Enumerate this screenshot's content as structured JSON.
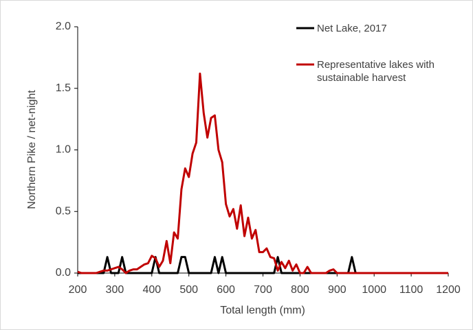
{
  "chart_data": {
    "type": "line",
    "xlabel": "Total length (mm)",
    "ylabel": "Northern Pike / net-night",
    "x": [
      200,
      210,
      220,
      230,
      240,
      250,
      260,
      270,
      280,
      290,
      300,
      310,
      320,
      330,
      340,
      350,
      360,
      370,
      380,
      390,
      400,
      410,
      420,
      430,
      440,
      450,
      460,
      470,
      480,
      490,
      500,
      510,
      520,
      530,
      540,
      550,
      560,
      570,
      580,
      590,
      600,
      610,
      620,
      630,
      640,
      650,
      660,
      670,
      680,
      690,
      700,
      710,
      720,
      730,
      740,
      750,
      760,
      770,
      780,
      790,
      800,
      810,
      820,
      830,
      840,
      850,
      860,
      870,
      880,
      890,
      900,
      910,
      920,
      930,
      940,
      950,
      960,
      970,
      980,
      990,
      1000,
      1010,
      1020,
      1030,
      1040,
      1050,
      1060,
      1070,
      1080,
      1090,
      1100,
      1110,
      1120,
      1130,
      1140,
      1150,
      1160,
      1170,
      1180,
      1190,
      1200
    ],
    "series": [
      {
        "name": "Net Lake, 2017",
        "color": "#000000",
        "values": [
          0,
          0,
          0,
          0,
          0,
          0,
          0,
          0,
          0.13,
          0,
          0,
          0,
          0.13,
          0,
          0,
          0,
          0,
          0,
          0,
          0,
          0,
          0.13,
          0,
          0,
          0,
          0,
          0,
          0,
          0.13,
          0.13,
          0,
          0,
          0,
          0,
          0,
          0,
          0,
          0.13,
          0,
          0.13,
          0,
          0,
          0,
          0,
          0,
          0,
          0,
          0,
          0,
          0,
          0,
          0,
          0,
          0,
          0.13,
          0,
          0,
          0,
          0,
          0,
          0,
          0,
          0,
          0,
          0,
          0,
          0,
          0,
          0,
          0,
          0,
          0,
          0,
          0,
          0.13,
          0,
          0,
          0,
          0,
          0,
          0,
          0,
          0,
          0,
          0,
          0,
          0,
          0,
          0,
          0,
          0,
          0,
          0,
          0,
          0,
          0,
          0,
          0,
          0,
          0,
          0
        ]
      },
      {
        "name": "Representative lakes with sustainable harvest",
        "color": "#c00000",
        "values": [
          0.01,
          0,
          0,
          0,
          0,
          0,
          0.01,
          0.02,
          0.02,
          0.03,
          0.04,
          0.05,
          0.03,
          0,
          0.02,
          0.03,
          0.03,
          0.05,
          0.07,
          0.08,
          0.14,
          0.12,
          0.05,
          0.1,
          0.26,
          0.08,
          0.33,
          0.28,
          0.68,
          0.85,
          0.78,
          0.97,
          1.06,
          1.62,
          1.3,
          1.1,
          1.26,
          1.28,
          1,
          0.9,
          0.56,
          0.46,
          0.52,
          0.36,
          0.55,
          0.3,
          0.45,
          0.28,
          0.35,
          0.17,
          0.17,
          0.2,
          0.13,
          0.12,
          0.02,
          0.09,
          0.04,
          0.1,
          0.02,
          0.07,
          0,
          0,
          0.05,
          0,
          0,
          0,
          0,
          0,
          0.02,
          0.03,
          0,
          0,
          0,
          0,
          0,
          0,
          0,
          0,
          0,
          0,
          0,
          0,
          0,
          0,
          0,
          0,
          0,
          0,
          0,
          0,
          0,
          0,
          0,
          0,
          0,
          0,
          0,
          0,
          0,
          0,
          0
        ]
      }
    ],
    "xlim": [
      200,
      1200
    ],
    "xticks": [
      200,
      300,
      400,
      500,
      600,
      700,
      800,
      900,
      1000,
      1100,
      1200
    ],
    "ylim": [
      0,
      2
    ],
    "yticks": [
      {
        "value": 0,
        "label": "0.0"
      },
      0.5,
      {
        "value": 1,
        "label": "1.0"
      },
      1.5,
      {
        "value": 2,
        "label": "2.0"
      }
    ]
  }
}
